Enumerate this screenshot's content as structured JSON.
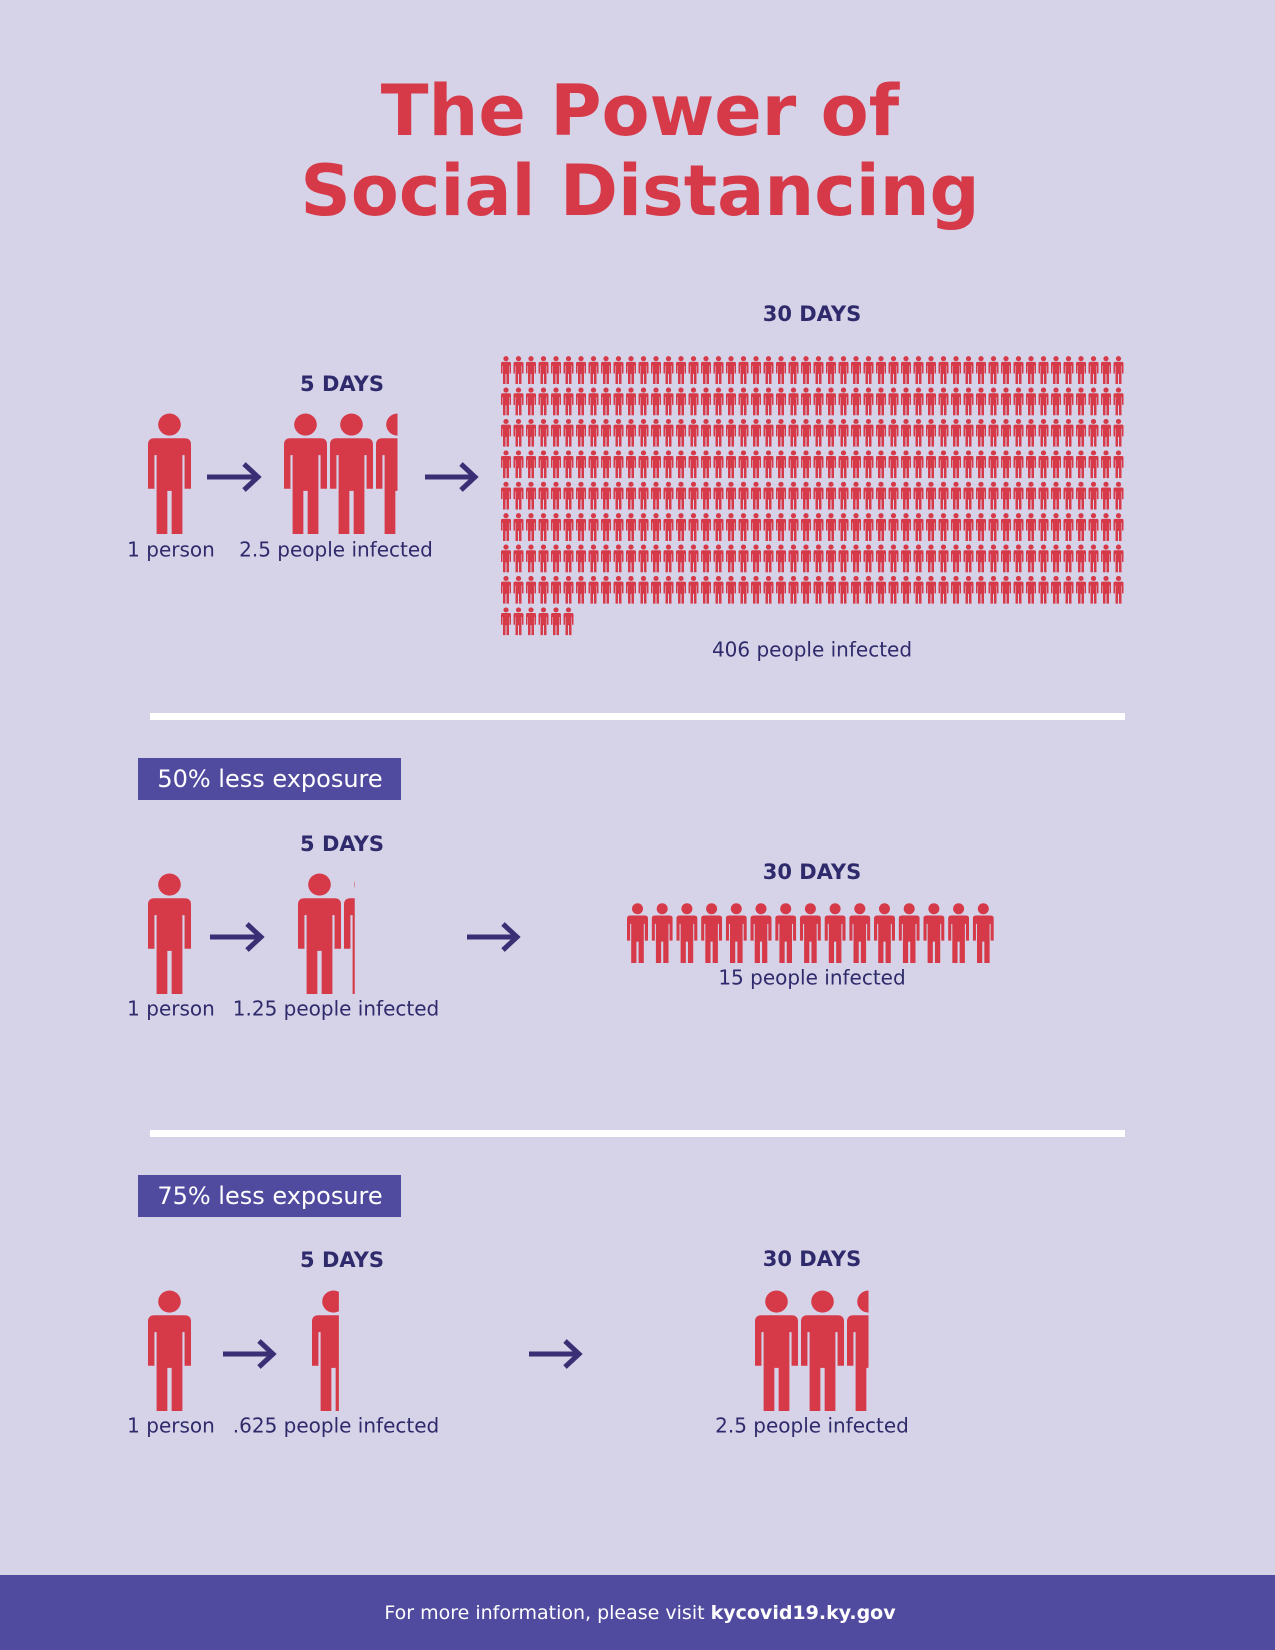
{
  "header": {
    "title_line1": "The Power of",
    "title_line2": "Social Distancing"
  },
  "sections": [
    {
      "start_label": "1 person",
      "day5_heading": "5 DAYS",
      "day5_label": "2.5 people infected",
      "day30_heading": "30 DAYS",
      "day30_label": "406 people infected"
    },
    {
      "exposure": "50% less exposure",
      "start_label": "1 person",
      "day5_heading": "5 DAYS",
      "day5_label": "1.25 people infected",
      "day30_heading": "30 DAYS",
      "day30_label": "15 people infected"
    },
    {
      "exposure": "75% less exposure",
      "start_label": "1 person",
      "day5_heading": "5 DAYS",
      "day5_label": ".625 people infected",
      "day30_heading": "30 DAYS",
      "day30_label": "2.5 people infected"
    }
  ],
  "footer": {
    "text": "For more information, please visit",
    "link": "kycovid19.ky.gov"
  }
}
